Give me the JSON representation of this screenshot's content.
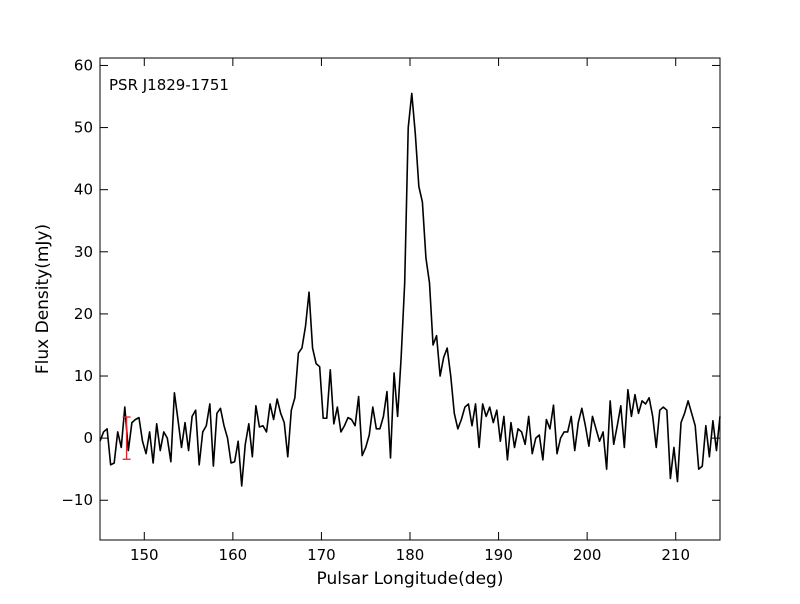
{
  "chart_data": {
    "type": "line",
    "annotation": "PSR J1829-1751",
    "x_label": "Pulsar Longitude(deg)",
    "y_label": "Flux Density(mJy)",
    "xlim": [
      145,
      215
    ],
    "xticks": [
      150,
      160,
      170,
      180,
      190,
      200,
      210
    ],
    "ylim": [
      -16.4,
      61.2
    ],
    "yticks": [
      {
        "value": -10,
        "label": "−10"
      },
      0,
      10,
      20,
      30,
      40,
      50,
      60
    ],
    "x": [
      145,
      145.4,
      145.8,
      146.2,
      146.6,
      147,
      147.4,
      147.8,
      148.2,
      148.6,
      149,
      149.4,
      149.8,
      150.2,
      150.6,
      151,
      151.4,
      151.8,
      152.2,
      152.6,
      153,
      153.4,
      153.8,
      154.2,
      154.6,
      155,
      155.4,
      155.8,
      156.2,
      156.6,
      157,
      157.4,
      157.8,
      158.2,
      158.6,
      159,
      159.4,
      159.8,
      160.2,
      160.6,
      161,
      161.4,
      161.8,
      162.2,
      162.6,
      163,
      163.4,
      163.8,
      164.2,
      164.6,
      165,
      165.4,
      165.8,
      166.2,
      166.6,
      167,
      167.4,
      167.8,
      168.2,
      168.6,
      169,
      169.4,
      169.8,
      170.2,
      170.6,
      171,
      171.4,
      171.8,
      172.2,
      172.6,
      173,
      173.4,
      173.8,
      174.2,
      174.6,
      175,
      175.4,
      175.8,
      176.2,
      176.6,
      177,
      177.4,
      177.8,
      178.2,
      178.6,
      179,
      179.4,
      179.8,
      180.2,
      180.6,
      181,
      181.4,
      181.8,
      182.2,
      182.6,
      183,
      183.4,
      183.8,
      184.2,
      184.6,
      185,
      185.4,
      185.8,
      186.2,
      186.6,
      187,
      187.4,
      187.8,
      188.2,
      188.6,
      189,
      189.4,
      189.8,
      190.2,
      190.6,
      191,
      191.4,
      191.8,
      192.2,
      192.6,
      193,
      193.4,
      193.8,
      194.2,
      194.6,
      195,
      195.4,
      195.8,
      196.2,
      196.6,
      197,
      197.4,
      197.8,
      198.2,
      198.6,
      199,
      199.4,
      199.8,
      200.2,
      200.6,
      201,
      201.4,
      201.8,
      202.2,
      202.6,
      203,
      203.4,
      203.8,
      204.2,
      204.6,
      205,
      205.4,
      205.8,
      206.2,
      206.6,
      207,
      207.4,
      207.8,
      208.2,
      208.6,
      209,
      209.4,
      209.8,
      210.2,
      210.6,
      211,
      211.4,
      211.8,
      212.2,
      212.6,
      213,
      213.4,
      213.8,
      214.2,
      214.6,
      215
    ],
    "series": [
      {
        "color": "#000000",
        "values": [
          -0.5,
          1,
          1.5,
          -4.3,
          -4,
          1,
          -1.5,
          5,
          -2,
          2.5,
          3,
          3.3,
          -0.5,
          -2.5,
          1,
          -4,
          2.3,
          -2,
          1,
          0,
          -3.8,
          7.3,
          3,
          -1.5,
          2.5,
          -2,
          3.5,
          4.5,
          -4.3,
          1,
          2,
          5.5,
          -4.5,
          4,
          4.8,
          2,
          0,
          -4,
          -3.8,
          -0.5,
          -7.7,
          -1,
          2.3,
          -3,
          5.2,
          1.8,
          2,
          1,
          5.5,
          3,
          6.3,
          4,
          2.5,
          -3,
          4.5,
          6.5,
          13.7,
          14.5,
          18,
          23.5,
          14.5,
          12,
          11.5,
          3.2,
          3.2,
          11,
          2.3,
          5,
          1,
          2,
          3.3,
          3,
          2,
          6.7,
          -2.8,
          -1.5,
          0.5,
          5,
          1.5,
          1.5,
          3.5,
          7.5,
          -3.2,
          10.5,
          3.5,
          13,
          25,
          50,
          55.5,
          49,
          40.5,
          38,
          29,
          25,
          15,
          16.5,
          10,
          13,
          14.5,
          10,
          4,
          1.5,
          3,
          5,
          5.5,
          2,
          5.5,
          -1.5,
          5.5,
          3.5,
          5,
          2.5,
          4.5,
          -0.5,
          3.5,
          -3.5,
          2.5,
          -1.5,
          1.5,
          1,
          -1,
          3.5,
          -2.5,
          0,
          0.5,
          -3.5,
          3,
          1.5,
          5.3,
          -2.5,
          0,
          1,
          1,
          3.5,
          -2,
          2.5,
          4.8,
          2,
          -1.3,
          3.5,
          1.5,
          -0.5,
          1,
          -5,
          6,
          -1,
          2,
          5.2,
          -1.5,
          7.8,
          3.5,
          7,
          4,
          6,
          5.5,
          6.5,
          3.5,
          -1.5,
          4.5,
          5,
          4.5,
          -6.5,
          -1.5,
          -7,
          2.5,
          4,
          6,
          4,
          2,
          -5,
          -4.5,
          2,
          -3,
          2.8,
          -2,
          3.5
        ]
      }
    ],
    "error_bar": {
      "x": 148,
      "y": 0,
      "error": 3.4,
      "color": "#e0202a"
    }
  }
}
